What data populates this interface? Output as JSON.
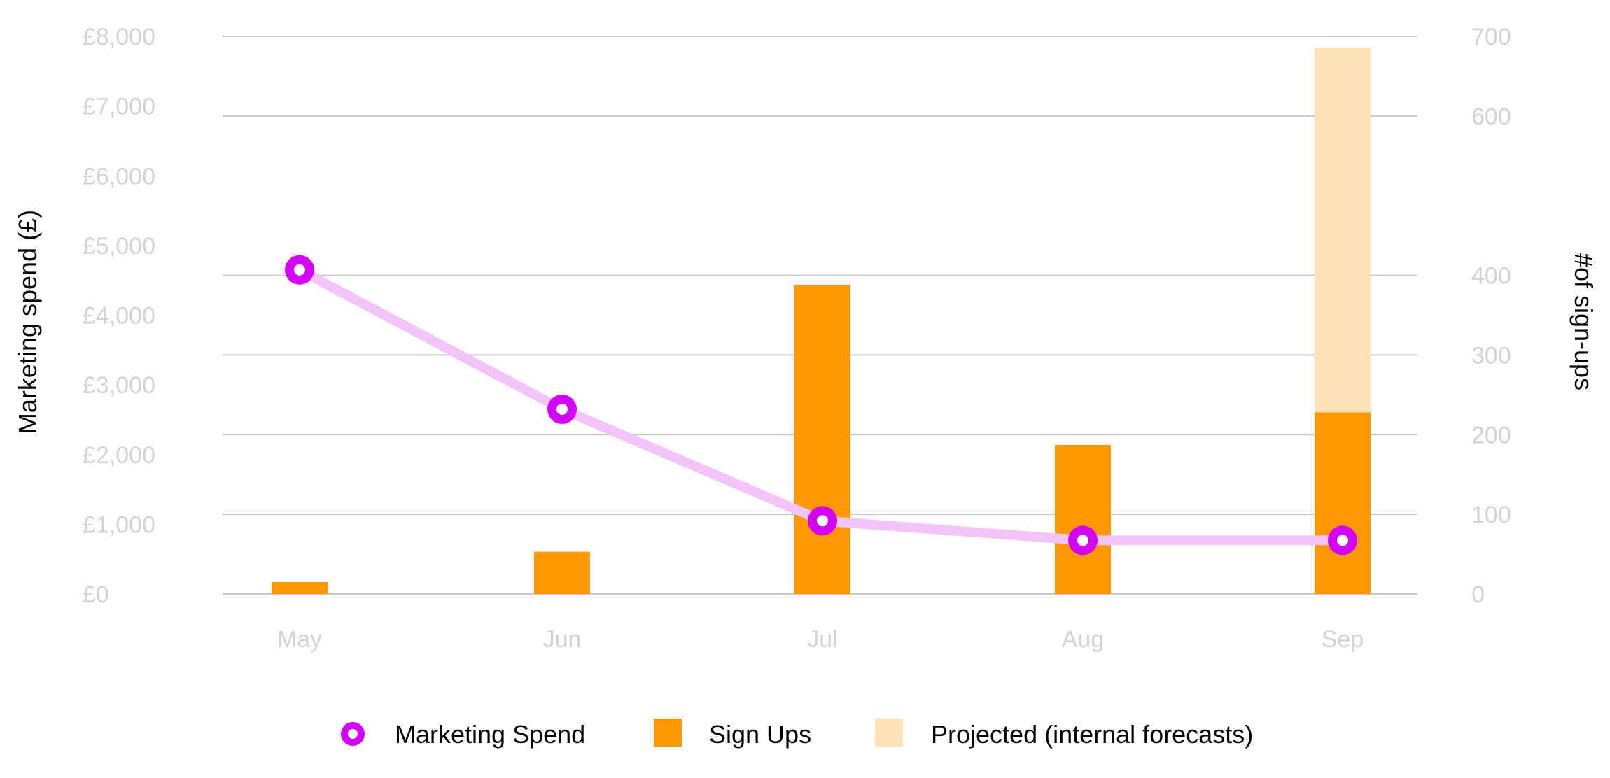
{
  "chart_data": {
    "type": "bar",
    "categories": [
      "May",
      "Jun",
      "Jul",
      "Aug",
      "Sep"
    ],
    "left_axis": {
      "label": "Marketing spend (£)",
      "ticks": [
        "£0",
        "£1,000",
        "£2,000",
        "£3,000",
        "£4,000",
        "£5,000",
        "£6,000",
        "£7,000",
        "£8,000"
      ],
      "ylim": [
        0,
        8000
      ]
    },
    "right_axis": {
      "label": "#of sign-ups",
      "ticks": [
        "0",
        "100",
        "200",
        "300",
        "400",
        "600",
        "700"
      ],
      "ylim": [
        0,
        700
      ]
    },
    "series": [
      {
        "name": "Marketing Spend",
        "type": "line",
        "axis": "left",
        "values": [
          4650,
          2650,
          1050,
          770,
          770
        ],
        "color": "#d500f9",
        "line_color": "#f2c4fa"
      },
      {
        "name": "Sign Ups",
        "type": "bar",
        "axis": "right",
        "values": [
          15,
          53,
          388,
          187,
          228
        ],
        "color": "#ff9800"
      },
      {
        "name": "Projected (internal forecasts)",
        "type": "bar",
        "axis": "right",
        "stacked_on": "Sign Ups",
        "values": [
          0,
          0,
          0,
          0,
          458
        ],
        "color": "#ffe3b8"
      }
    ],
    "grid": true,
    "legend_position": "bottom"
  },
  "colors": {
    "grid": "#c8c8c8",
    "tick_text": "#d3d3d3",
    "title_text": "#000000"
  }
}
